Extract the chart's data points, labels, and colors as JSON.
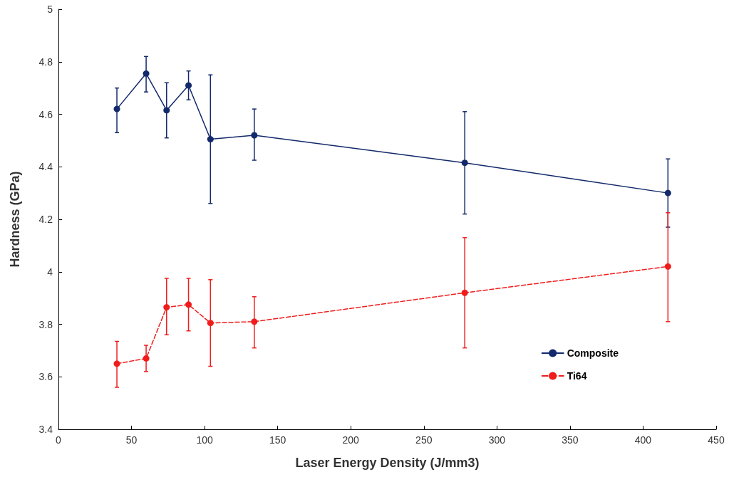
{
  "chart_data": {
    "type": "line",
    "xlabel": "Laser Energy Density (J/mm3)",
    "ylabel": "Hardness (GPa)",
    "x": [
      40,
      60,
      74,
      89,
      104,
      134,
      278,
      417
    ],
    "series": [
      {
        "name": "Composite",
        "color": "#12296b",
        "line_style": "solid",
        "values": [
          4.62,
          4.755,
          4.615,
          4.71,
          4.505,
          4.52,
          4.415,
          4.3
        ],
        "errors": [
          [
            4.53,
            4.7
          ],
          [
            4.685,
            4.82
          ],
          [
            4.51,
            4.72
          ],
          [
            4.655,
            4.765
          ],
          [
            4.26,
            4.75
          ],
          [
            4.425,
            4.62
          ],
          [
            4.22,
            4.61
          ],
          [
            4.17,
            4.43
          ]
        ]
      },
      {
        "name": "Ti64",
        "color": "#f01c1c",
        "line_style": "dashed",
        "values": [
          3.65,
          3.67,
          3.865,
          3.875,
          3.805,
          3.81,
          3.92,
          4.02
        ],
        "errors": [
          [
            3.56,
            3.735
          ],
          [
            3.62,
            3.72
          ],
          [
            3.76,
            3.975
          ],
          [
            3.775,
            3.975
          ],
          [
            3.64,
            3.97
          ],
          [
            3.71,
            3.905
          ],
          [
            3.71,
            4.13
          ],
          [
            3.81,
            4.225
          ]
        ]
      }
    ],
    "xlim": [
      0,
      450
    ],
    "xticks": [
      0,
      50,
      100,
      150,
      200,
      250,
      300,
      350,
      400,
      450
    ],
    "ylim": [
      3.4,
      5
    ],
    "yticks": [
      3.4,
      3.6,
      3.8,
      4,
      4.2,
      4.4,
      4.6,
      4.8,
      5
    ],
    "grid": false,
    "legend": "bottom right",
    "marker": "circle"
  }
}
